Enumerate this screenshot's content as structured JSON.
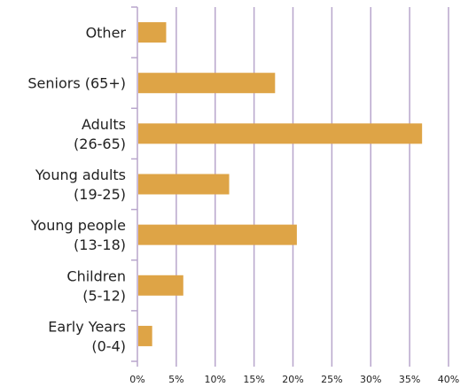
{
  "colors": {
    "bar": "#dea446",
    "grid": "#b8a6cc",
    "axis": "#b8a6cc",
    "text": "#222222"
  },
  "chart_data": {
    "type": "bar",
    "orientation": "horizontal",
    "categories": [
      [
        "Other"
      ],
      [
        "Seniors (65+)"
      ],
      [
        "Adults",
        "(26-65)"
      ],
      [
        "Young adults",
        "(19-25)"
      ],
      [
        "Young people",
        "(13-18)"
      ],
      [
        "Children",
        "(5-12)"
      ],
      [
        "Early Years",
        "(0-4)"
      ]
    ],
    "values": [
      3.7,
      17.7,
      36.6,
      11.8,
      20.5,
      5.9,
      1.9
    ],
    "xlim": [
      0,
      40
    ],
    "x_ticks": [
      0,
      5,
      10,
      15,
      20,
      25,
      30,
      35,
      40
    ],
    "x_tick_labels": [
      "0%",
      "5%",
      "10%",
      "15%",
      "20%",
      "25%",
      "30%",
      "35%",
      "40%"
    ],
    "grid": "vertical",
    "legend": "none",
    "title": "",
    "xlabel": "",
    "ylabel": ""
  }
}
